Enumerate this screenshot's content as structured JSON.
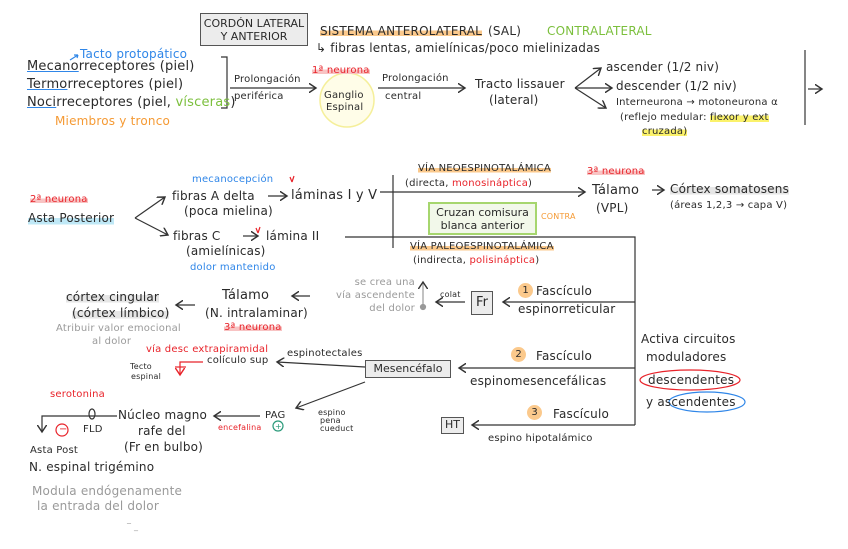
{
  "header": {
    "cordon_box": [
      "CORDÓN LATERAL",
      "Y ANTERIOR"
    ],
    "system_title": "SISTEMA ANTEROLATERAL",
    "system_abbr": "(SAL)",
    "contralateral": "CONTRALATERAL",
    "fibers_note": "↳ fibras lentas, amielínicas/poco mielinizadas"
  },
  "receptors": {
    "tacto": "Tacto protopático",
    "items": [
      {
        "prefix": "Mecano",
        "rest": "rreceptores (piel)"
      },
      {
        "prefix": "Termo",
        "rest": "rreceptores (piel)"
      },
      {
        "prefix": "Noci",
        "rest": "rreceptores (piel, ",
        "extra": "vísceras",
        "end": ")"
      }
    ],
    "region": "Miembros y tronco"
  },
  "first_neuron": {
    "prolong_periph": [
      "Prolongación",
      "periférica"
    ],
    "label": "1ª neurona",
    "ganglion": [
      "Ganglio",
      "Espinal"
    ],
    "prolong_central": [
      "Prolongación",
      "central"
    ],
    "tract": [
      "Tracto lissauer",
      "(lateral)"
    ],
    "branches": [
      "ascender (1/2 niv)",
      "descender (1/2 niv)",
      "Interneurona → motoneurona α"
    ],
    "reflex": "(reflejo medular: ",
    "reflex_hl": "flexor y ext",
    "reflex_hl2": "cruzada)"
  },
  "second_neuron": {
    "label": "2ª neurona",
    "asta": "Asta Posterior",
    "mecanocepcion": "mecanocepción",
    "a_delta": [
      "fibras A delta",
      "(poca mielina)"
    ],
    "laminas_1_5": "láminas I y V",
    "c_fibers": [
      "fibras C",
      "(amielínicas)"
    ],
    "lamina_2": "lámina II",
    "dolor": "dolor mantenido",
    "neo_title": "VÍA NEOESPINOTALÁMICA",
    "neo_sub": "(directa, ",
    "neo_sub_red": "monosináptica",
    "neo_sub_end": ")",
    "cross_box": [
      "Cruzan comisura",
      "blanca anterior"
    ],
    "contra": "CONTRA",
    "paleo_title": "VÍA PALEOESPINOTALÁMICA",
    "paleo_sub": "(indirecta, ",
    "paleo_sub_red": "polisináptica",
    "paleo_sub_end": ")",
    "third_neuron": "3ª neurona",
    "thalamus": "Tálamo",
    "vpl": "(VPL)",
    "cortex": "Córtex somatosens",
    "cortex_areas": "(áreas 1,2,3 → capa V)"
  },
  "paleo_path": {
    "f1_num": "1",
    "f1": [
      "Fascículo",
      "espinorreticular"
    ],
    "fr": "Fr",
    "colat": "colat",
    "ascending_note": [
      "se crea una",
      "vía ascendente",
      "del dolor"
    ],
    "thalamus": [
      "Tálamo",
      "(N. intralaminar)"
    ],
    "third_neuron": "3ª neurona",
    "cingular": [
      "córtex cingular",
      "(córtex límbico)"
    ],
    "emotional": [
      "Atribuir valor emocional",
      "al dolor"
    ],
    "f2_num": "2",
    "f2": [
      "Fascículo",
      "espinomesencefálicas"
    ],
    "mesencefalo": "Mesencéfalo",
    "espinotectales": "espinotectales",
    "coliculo": "colículo sup",
    "extrapiramidal": "vía desc extrapiramidal",
    "tecto": [
      "Tecto",
      "espinal"
    ],
    "modulators": [
      "Activa circuitos",
      "moduladores",
      "descendentes",
      "y ",
      "ascendentes"
    ],
    "f3_num": "3",
    "f3": [
      "Fascículo",
      "espino hipotalámico"
    ],
    "ht": "HT",
    "espino_pena": [
      "espino",
      "pena",
      "cueduct"
    ],
    "pag": "PAG",
    "plus": "+",
    "encefalina": "encefalina",
    "nucleo": [
      "Núcleo magno",
      "rafe del",
      "(Fr en bulbo)"
    ],
    "serotonina": "serotonina",
    "fld": "FLD",
    "minus": "−",
    "asta_post": [
      "Asta Post",
      "N. espinal trigémino"
    ],
    "modula": [
      "Modula endógenamente",
      "la entrada del dolor"
    ],
    "dash": "‾ _"
  },
  "colors": {
    "red": "#e8232a",
    "blue": "#2f86e8",
    "green": "#7bbf3c",
    "orange": "#f59a34",
    "highlight_yellow": "#fbf26b"
  }
}
